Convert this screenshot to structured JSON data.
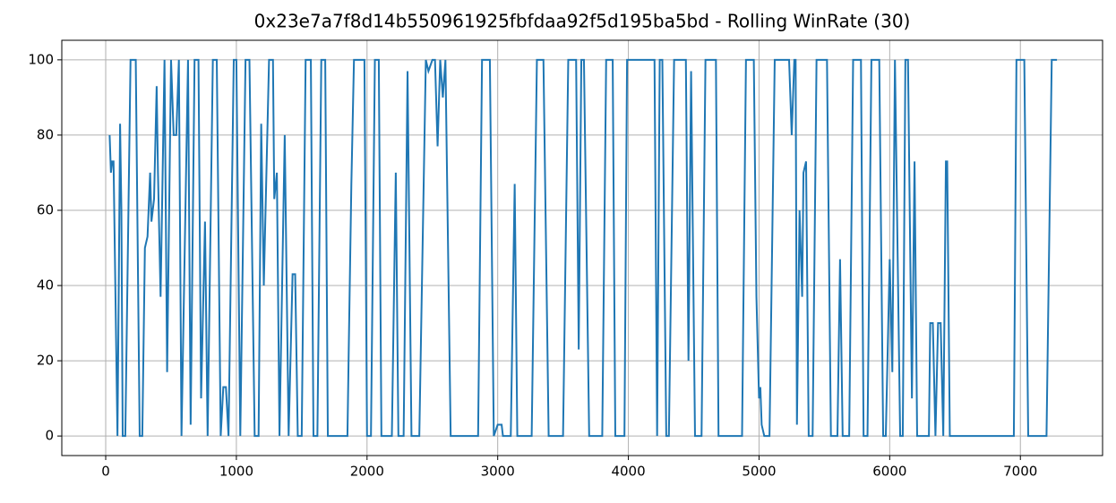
{
  "chart_data": {
    "type": "line",
    "title": "0x23e7a7f8d14b550961925fbfdaa92f5d195ba5bd - Rolling WinRate (30)",
    "x": [
      30,
      40,
      50,
      60,
      90,
      100,
      110,
      120,
      130,
      150,
      190,
      230,
      260,
      280,
      300,
      320,
      340,
      350,
      370,
      390,
      400,
      420,
      450,
      470,
      500,
      520,
      540,
      560,
      580,
      630,
      650,
      680,
      710,
      730,
      760,
      780,
      820,
      850,
      880,
      900,
      920,
      940,
      980,
      1000,
      1030,
      1070,
      1100,
      1140,
      1170,
      1190,
      1210,
      1250,
      1280,
      1290,
      1310,
      1330,
      1370,
      1400,
      1430,
      1450,
      1470,
      1500,
      1530,
      1570,
      1590,
      1620,
      1650,
      1680,
      1700,
      1850,
      1860,
      1880,
      1900,
      1980,
      2000,
      2030,
      2060,
      2090,
      2110,
      2190,
      2220,
      2240,
      2280,
      2310,
      2340,
      2400,
      2450,
      2470,
      2500,
      2520,
      2540,
      2560,
      2580,
      2600,
      2640,
      2850,
      2880,
      2940,
      2970,
      3000,
      3030,
      3040,
      3100,
      3130,
      3150,
      3260,
      3300,
      3350,
      3390,
      3500,
      3540,
      3600,
      3620,
      3640,
      3660,
      3700,
      3800,
      3830,
      3880,
      3900,
      3970,
      3990,
      4200,
      4220,
      4240,
      4260,
      4290,
      4310,
      4350,
      4440,
      4460,
      4480,
      4510,
      4560,
      4590,
      4670,
      4690,
      4870,
      4900,
      4960,
      4980,
      5000,
      5010,
      5020,
      5040,
      5080,
      5120,
      5230,
      5250,
      5270,
      5280,
      5290,
      5310,
      5330,
      5340,
      5360,
      5380,
      5410,
      5440,
      5520,
      5550,
      5600,
      5620,
      5640,
      5690,
      5720,
      5780,
      5800,
      5830,
      5860,
      5920,
      5950,
      5970,
      6000,
      6020,
      6040,
      6080,
      6100,
      6120,
      6140,
      6170,
      6190,
      6210,
      6300,
      6310,
      6330,
      6350,
      6370,
      6390,
      6410,
      6430,
      6440,
      6460,
      6950,
      6970,
      7030,
      7060,
      7200,
      7240,
      7280
    ],
    "series": [
      {
        "color": "#1f77b4",
        "values": [
          80,
          70,
          73,
          73,
          0,
          40,
          83,
          60,
          0,
          0,
          100,
          100,
          0,
          0,
          50,
          53,
          70,
          57,
          63,
          93,
          70,
          37,
          100,
          17,
          100,
          80,
          80,
          100,
          0,
          100,
          3,
          100,
          100,
          10,
          57,
          0,
          100,
          100,
          0,
          13,
          13,
          0,
          100,
          100,
          0,
          100,
          100,
          0,
          0,
          83,
          40,
          100,
          100,
          63,
          70,
          0,
          80,
          0,
          43,
          43,
          0,
          0,
          100,
          100,
          0,
          0,
          100,
          100,
          0,
          0,
          23,
          67,
          100,
          100,
          0,
          0,
          100,
          100,
          0,
          0,
          70,
          0,
          0,
          97,
          0,
          0,
          100,
          97,
          100,
          100,
          77,
          100,
          90,
          100,
          0,
          0,
          100,
          100,
          0,
          3,
          3,
          0,
          0,
          67,
          0,
          0,
          100,
          100,
          0,
          0,
          100,
          100,
          23,
          100,
          100,
          0,
          0,
          100,
          100,
          0,
          0,
          100,
          100,
          0,
          100,
          100,
          0,
          0,
          100,
          100,
          20,
          97,
          0,
          0,
          100,
          100,
          0,
          0,
          100,
          100,
          37,
          10,
          13,
          3,
          0,
          0,
          100,
          100,
          80,
          100,
          100,
          3,
          60,
          37,
          70,
          73,
          0,
          0,
          100,
          100,
          0,
          0,
          47,
          0,
          0,
          100,
          100,
          0,
          0,
          100,
          100,
          0,
          0,
          47,
          17,
          100,
          0,
          0,
          100,
          100,
          10,
          73,
          0,
          0,
          30,
          30,
          0,
          30,
          30,
          0,
          73,
          73,
          0,
          0,
          100,
          100,
          0,
          0,
          100,
          100
        ]
      }
    ],
    "xlim": [
      -336,
      7629
    ],
    "ylim": [
      -5.2,
      105.2
    ],
    "xticks": [
      0,
      1000,
      2000,
      3000,
      4000,
      5000,
      6000,
      7000
    ],
    "yticks": [
      0,
      20,
      40,
      60,
      80,
      100
    ],
    "grid": true
  }
}
